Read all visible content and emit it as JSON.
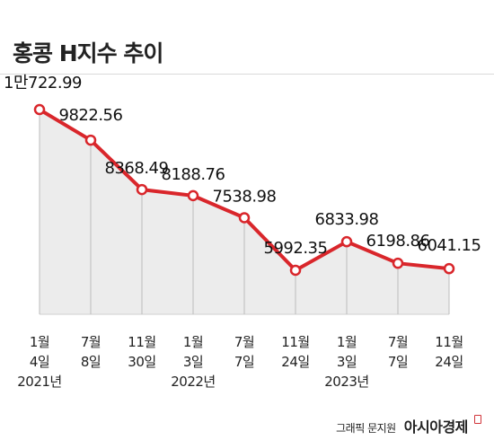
{
  "title": "홍콩 H지수 추이",
  "chart_data": {
    "type": "area",
    "title": "홍콩 H지수 추이",
    "ylim": [
      5000,
      11000
    ],
    "grid": false,
    "x": [
      {
        "line1": "1월",
        "line2": "4일",
        "line3": "2021년"
      },
      {
        "line1": "7월",
        "line2": "8일",
        "line3": ""
      },
      {
        "line1": "11월",
        "line2": "30일",
        "line3": ""
      },
      {
        "line1": "1월",
        "line2": "3일",
        "line3": "2022년"
      },
      {
        "line1": "7월",
        "line2": "7일",
        "line3": ""
      },
      {
        "line1": "11월",
        "line2": "24일",
        "line3": ""
      },
      {
        "line1": "1월",
        "line2": "3일",
        "line3": "2023년"
      },
      {
        "line1": "7월",
        "line2": "7일",
        "line3": ""
      },
      {
        "line1": "11월",
        "line2": "24일",
        "line3": ""
      }
    ],
    "values": [
      10722.99,
      9822.56,
      8368.49,
      8188.76,
      7538.98,
      5992.35,
      6833.98,
      6198.86,
      6041.15
    ],
    "data_labels": [
      "1만722.99",
      "9822.56",
      "8368.49",
      "8188.76",
      "7538.98",
      "5992.35",
      "6833.98",
      "6198.86",
      "6041.15"
    ],
    "colors": {
      "line": "#d9262b",
      "area": "#ececec",
      "marker_fill": "#ffffff",
      "drop_line": "#bdbdbd"
    }
  },
  "credit": {
    "dept": "그래픽 문지원",
    "brand": "아시아경제"
  }
}
